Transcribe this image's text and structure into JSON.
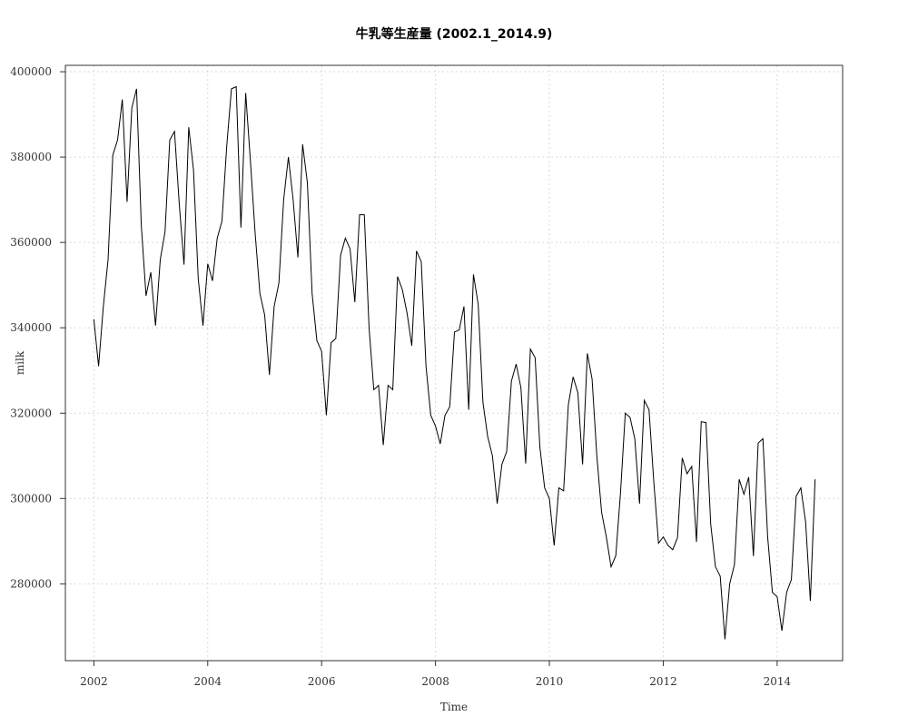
{
  "chart_data": {
    "type": "line",
    "title": "牛乳等生産量 (2002.1_2014.9)",
    "xlabel": "Time",
    "ylabel": "milk",
    "xlim": [
      2001.5,
      2015.15
    ],
    "ylim": [
      262000,
      401500
    ],
    "x_ticks": [
      2002,
      2004,
      2006,
      2008,
      2010,
      2012,
      2014
    ],
    "y_ticks": [
      280000,
      300000,
      320000,
      340000,
      360000,
      380000,
      400000
    ],
    "grid": true,
    "start": 2002.0,
    "frequency": 12,
    "series": [
      {
        "values": [
          342000,
          331000,
          345000,
          356000,
          380500,
          384000,
          393500,
          369500,
          391500,
          396000,
          364000,
          347500,
          353000,
          340500,
          356000,
          362500,
          384000,
          386000,
          369000,
          354800,
          387000,
          377000,
          351500,
          340500,
          355000,
          351000,
          361000,
          365000,
          382500,
          396000,
          396500,
          363500,
          395000,
          379000,
          362000,
          348000,
          343000,
          329000,
          345000,
          350500,
          370000,
          380000,
          370000,
          356500,
          383000,
          374000,
          348000,
          337000,
          334500,
          319500,
          336500,
          337500,
          357000,
          361000,
          358500,
          346000,
          366500,
          366500,
          340000,
          325500,
          326500,
          312500,
          326500,
          325500,
          352000,
          349000,
          343500,
          335800,
          358000,
          355500,
          331000,
          319500,
          317000,
          312800,
          319500,
          321500,
          339000,
          339500,
          345000,
          320800,
          352500,
          345500,
          322500,
          314500,
          310000,
          298800,
          308000,
          311000,
          327500,
          331500,
          326000,
          308200,
          335000,
          333000,
          312000,
          302500,
          300000,
          289000,
          302500,
          301800,
          322000,
          328500,
          324800,
          308000,
          334000,
          328000,
          310000,
          296800,
          291000,
          284000,
          286600,
          301500,
          320000,
          319000,
          314000,
          298800,
          323000,
          320800,
          304000,
          289500,
          291000,
          289000,
          288000,
          290800,
          309500,
          305800,
          307500,
          289800,
          318000,
          317800,
          294000,
          284000,
          281800,
          267000,
          280000,
          284500,
          304500,
          301000,
          305000,
          286500,
          313000,
          314000,
          291000,
          278000,
          277000,
          269000,
          278000,
          281000,
          300500,
          302500,
          294500,
          276000,
          304500
        ]
      }
    ]
  }
}
